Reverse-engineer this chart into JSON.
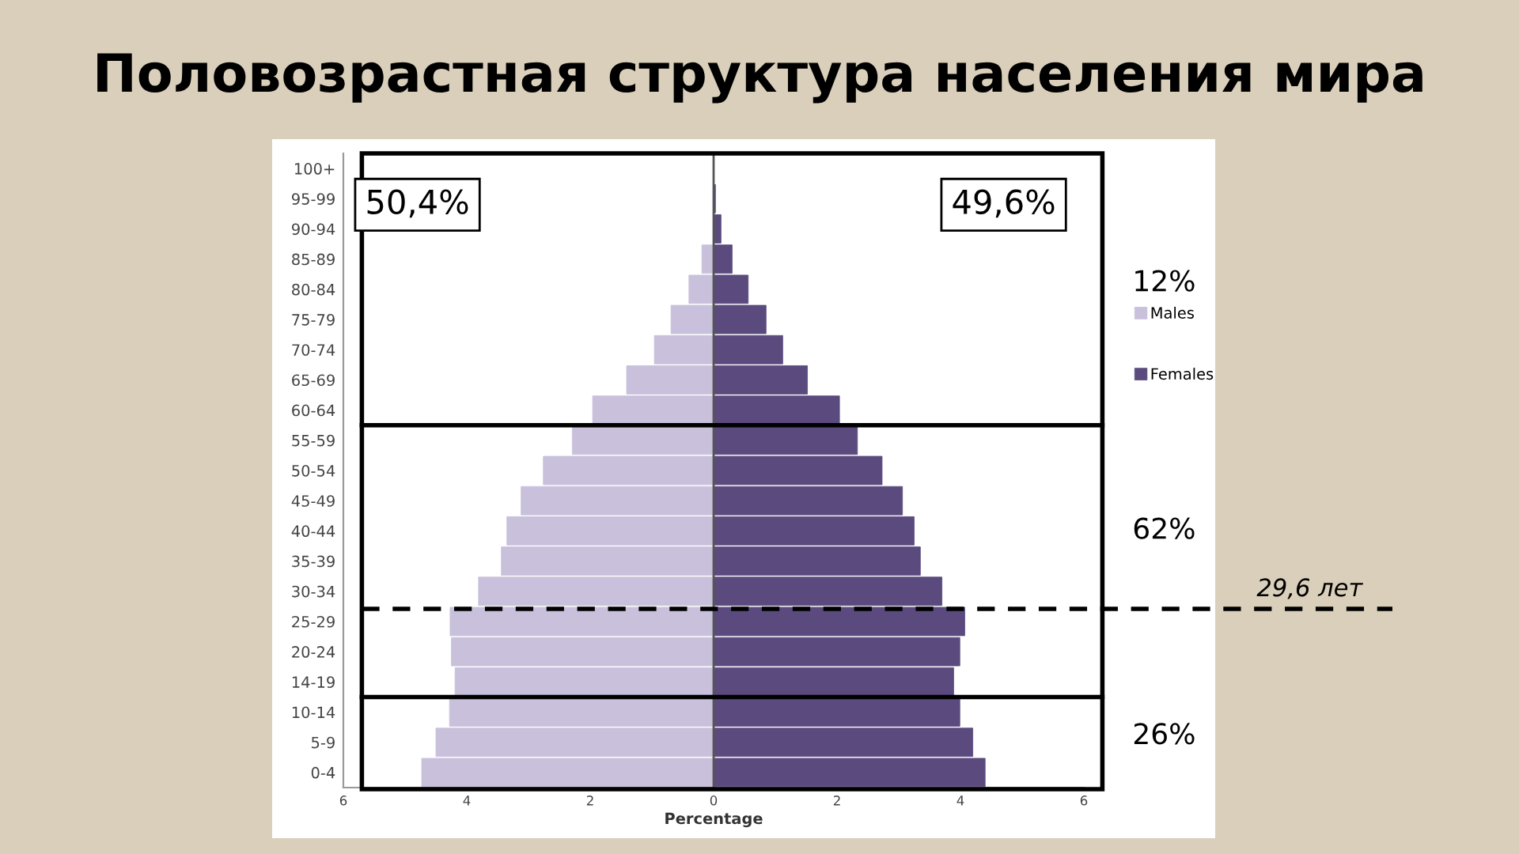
{
  "chart_data": {
    "type": "bar",
    "orientation": "horizontal",
    "stacked": true,
    "title": "Половозрастная структура населения мира",
    "xlabel": "Percentage",
    "categories": [
      "100+",
      "95-99",
      "90-94",
      "85-89",
      "80-84",
      "75-79",
      "70-74",
      "65-69",
      "60-64",
      "55-59",
      "50-54",
      "45-49",
      "40-44",
      "35-39",
      "30-34",
      "25-29",
      "20-24",
      "14-19",
      "10-14",
      "5-9",
      "0-4"
    ],
    "series": [
      {
        "name": "Males",
        "color": "#c9c0dc",
        "values": [
          0,
          null,
          null,
          -0.19,
          -0.4,
          -0.69,
          -0.96,
          -1.41,
          -1.96,
          -2.29,
          -2.76,
          -3.12,
          -3.35,
          -3.44,
          -3.81,
          -4.27,
          -4.25,
          -4.19,
          -4.28,
          -4.5,
          -4.73
        ]
      },
      {
        "name": "Females",
        "color": "#5b4a7e",
        "values": [
          0,
          0.03,
          0.12,
          0.3,
          0.56,
          0.85,
          1.12,
          1.52,
          2.04,
          2.33,
          2.73,
          3.06,
          3.25,
          3.35,
          3.7,
          4.07,
          3.99,
          3.89,
          3.99,
          4.2,
          4.4
        ]
      }
    ],
    "xlim": [
      -6,
      6
    ],
    "xticks": [
      {
        "value": -6,
        "label": "6"
      },
      {
        "value": -4,
        "label": "4"
      },
      {
        "value": -2,
        "label": "2"
      },
      0,
      2,
      4,
      6
    ],
    "ref_lines": [
      {
        "axis": "y",
        "value": "25-29",
        "label": "29,6 лет",
        "line_style": "dashed",
        "color": "#000000"
      }
    ],
    "annotations": [
      "50,4%",
      "49,6%",
      "12%",
      "62%",
      "26%"
    ],
    "legend": "right"
  }
}
